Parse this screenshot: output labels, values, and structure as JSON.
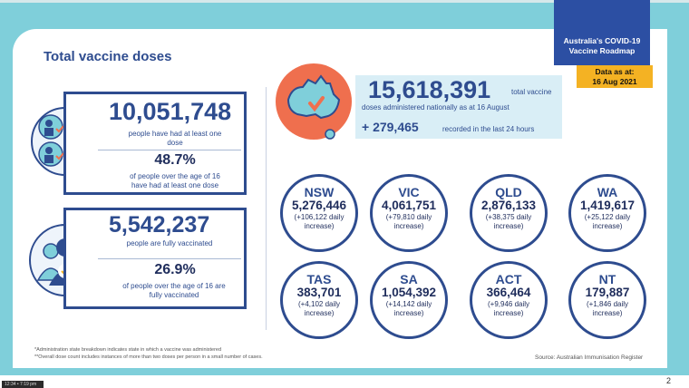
{
  "header": {
    "banner_line1": "Australia's COVID-19",
    "banner_line2": "Vaccine Roadmap",
    "data_as_label": "Data as at:",
    "data_as_date": "16 Aug 2021"
  },
  "title": "Total vaccine doses",
  "first_dose": {
    "count": "10,051,748",
    "label_line1": "people have had at least one",
    "label_line2": "dose",
    "percent": "48.7%",
    "percent_line1": "of people over the age of 16",
    "percent_line2": "have had at least one dose"
  },
  "fully_vaccinated": {
    "count": "5,542,237",
    "label": "people are fully vaccinated",
    "percent": "26.9%",
    "percent_line1": "of people over the age of 16 are",
    "percent_line2": "fully vaccinated"
  },
  "national": {
    "total": "15,618,391",
    "total_label": "total vaccine",
    "sub_label": "doses administered nationally as at 16 August",
    "increase": "+ 279,465",
    "increase_label": "recorded in the last 24 hours"
  },
  "states": [
    {
      "abbr": "NSW",
      "value": "5,276,446",
      "inc_line1": "(+106,122 daily",
      "inc_line2": "increase)"
    },
    {
      "abbr": "VIC",
      "value": "4,061,751",
      "inc_line1": "(+79,810 daily",
      "inc_line2": "increase)"
    },
    {
      "abbr": "QLD",
      "value": "2,876,133",
      "inc_line1": "(+38,375 daily",
      "inc_line2": "increase)"
    },
    {
      "abbr": "WA",
      "value": "1,419,617",
      "inc_line1": "(+25,122 daily",
      "inc_line2": "increase)"
    },
    {
      "abbr": "TAS",
      "value": "383,701",
      "inc_line1": "(+4,102 daily",
      "inc_line2": "increase)"
    },
    {
      "abbr": "SA",
      "value": "1,054,392",
      "inc_line1": "(+14,142 daily",
      "inc_line2": "increase)"
    },
    {
      "abbr": "ACT",
      "value": "366,464",
      "inc_line1": "(+9,946 daily",
      "inc_line2": "increase)"
    },
    {
      "abbr": "NT",
      "value": "179,887",
      "inc_line1": "(+1,846 daily",
      "inc_line2": "increase)"
    }
  ],
  "footnotes": {
    "line1": "*Administration state breakdown indicates state in which a vaccine was administered",
    "line2": "**Overall dose count includes instances of more than two doses per person in a small number of cases.",
    "source": "Source: Australian Immunisation Register"
  },
  "slide_number": "2",
  "taskbar_text": "12:34 • 7:19 pm",
  "colors": {
    "navy": "#2e4c8f",
    "banner": "#2c4fa3",
    "gold": "#f4b223",
    "teal": "#7fcfda",
    "map": "#7fcfda",
    "coral": "#ef6f4e"
  },
  "icons": [
    "people-grid-icon",
    "people-group-icon",
    "australia-map-icon",
    "check-icon"
  ]
}
